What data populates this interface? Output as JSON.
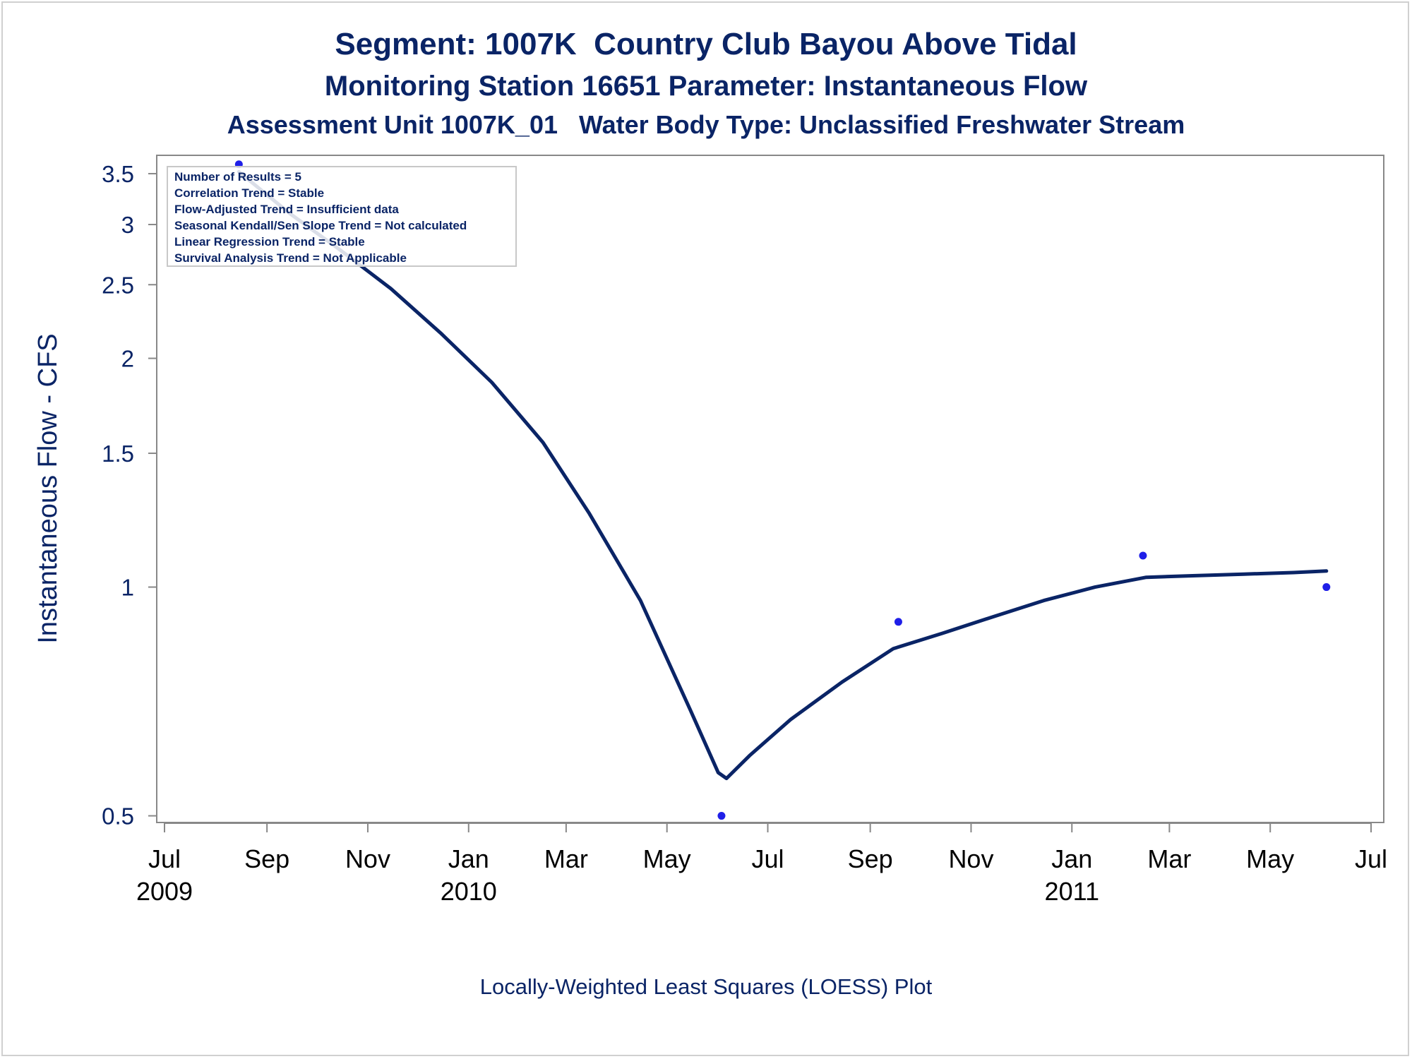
{
  "titles": {
    "line1": "Segment: 1007K  Country Club Bayou Above Tidal",
    "line2": "Monitoring Station 16651 Parameter: Instantaneous Flow",
    "line3": "Assessment Unit 1007K_01   Water Body Type: Unclassified Freshwater Stream"
  },
  "footnote": "Locally-Weighted Least Squares (LOESS) Plot",
  "stats_box": [
    "Number of Results = 5",
    "Correlation Trend = Stable",
    "Flow-Adjusted Trend = Insufficient data",
    "Seasonal Kendall/Sen Slope Trend = Not calculated",
    "Linear Regression Trend = Stable",
    "Survival Analysis Trend = Not Applicable"
  ],
  "chart_data": {
    "type": "scatter",
    "title": "Segment: 1007K  Country Club Bayou Above Tidal",
    "xlabel": "",
    "ylabel": "Instantaneous Flow - CFS",
    "y_scale": "log",
    "ylim": [
      0.49,
      3.7
    ],
    "xlim": [
      "2009-07-01",
      "2011-07-01"
    ],
    "y_ticks": [
      0.5,
      1,
      1.5,
      2,
      2.5,
      3,
      3.5
    ],
    "y_tick_labels": [
      "0.5",
      "1",
      "1.5",
      "2",
      "2.5",
      "3",
      "3.5"
    ],
    "x_ticks": [
      {
        "date": "2009-07-01",
        "label": "Jul",
        "year": "2009"
      },
      {
        "date": "2009-09-01",
        "label": "Sep",
        "year": ""
      },
      {
        "date": "2009-11-01",
        "label": "Nov",
        "year": ""
      },
      {
        "date": "2010-01-01",
        "label": "Jan",
        "year": "2010"
      },
      {
        "date": "2010-03-01",
        "label": "Mar",
        "year": ""
      },
      {
        "date": "2010-05-01",
        "label": "May",
        "year": ""
      },
      {
        "date": "2010-07-01",
        "label": "Jul",
        "year": ""
      },
      {
        "date": "2010-09-01",
        "label": "Sep",
        "year": ""
      },
      {
        "date": "2010-11-01",
        "label": "Nov",
        "year": ""
      },
      {
        "date": "2011-01-01",
        "label": "Jan",
        "year": "2011"
      },
      {
        "date": "2011-03-01",
        "label": "Mar",
        "year": ""
      },
      {
        "date": "2011-05-01",
        "label": "May",
        "year": ""
      },
      {
        "date": "2011-07-01",
        "label": "Jul",
        "year": ""
      }
    ],
    "grid": false,
    "series": [
      {
        "kind": "points",
        "points": [
          {
            "x": "2009-08-15",
            "y": 3.6
          },
          {
            "x": "2010-06-03",
            "y": 0.5
          },
          {
            "x": "2010-09-18",
            "y": 0.9
          },
          {
            "x": "2011-02-13",
            "y": 1.1
          },
          {
            "x": "2011-06-04",
            "y": 1.0
          }
        ]
      },
      {
        "kind": "loess",
        "points": [
          {
            "x": "2009-08-15",
            "y": 3.52
          },
          {
            "x": "2009-09-15",
            "y": 3.1
          },
          {
            "x": "2009-10-15",
            "y": 2.78
          },
          {
            "x": "2009-11-15",
            "y": 2.47
          },
          {
            "x": "2009-12-15",
            "y": 2.16
          },
          {
            "x": "2010-01-15",
            "y": 1.86
          },
          {
            "x": "2010-02-15",
            "y": 1.55
          },
          {
            "x": "2010-03-15",
            "y": 1.25
          },
          {
            "x": "2010-04-15",
            "y": 0.96
          },
          {
            "x": "2010-05-15",
            "y": 0.69
          },
          {
            "x": "2010-06-01",
            "y": 0.57
          },
          {
            "x": "2010-06-06",
            "y": 0.56
          },
          {
            "x": "2010-06-20",
            "y": 0.6
          },
          {
            "x": "2010-07-15",
            "y": 0.67
          },
          {
            "x": "2010-08-15",
            "y": 0.75
          },
          {
            "x": "2010-09-15",
            "y": 0.83
          },
          {
            "x": "2010-10-15",
            "y": 0.87
          },
          {
            "x": "2010-11-15",
            "y": 0.915
          },
          {
            "x": "2010-12-15",
            "y": 0.96
          },
          {
            "x": "2011-01-15",
            "y": 1.0
          },
          {
            "x": "2011-02-15",
            "y": 1.03
          },
          {
            "x": "2011-03-15",
            "y": 1.035
          },
          {
            "x": "2011-04-15",
            "y": 1.04
          },
          {
            "x": "2011-05-15",
            "y": 1.045
          },
          {
            "x": "2011-06-04",
            "y": 1.05
          }
        ]
      }
    ]
  },
  "colors": {
    "title": "#0a2466",
    "line": "#0a2466",
    "point": "#1f1fe8",
    "axis": "#888888"
  }
}
